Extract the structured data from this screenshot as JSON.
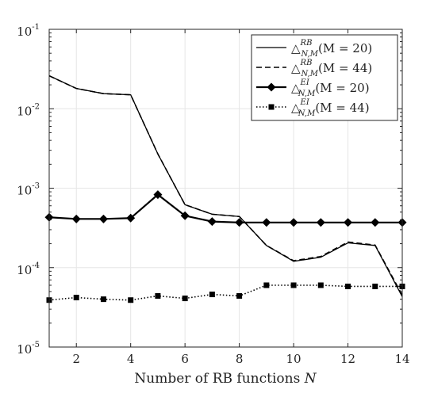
{
  "chart_data": {
    "type": "line",
    "title": "",
    "xlabel": "Number of RB functions N",
    "xlabel_main": "Number of RB functions ",
    "xlabel_var": "N",
    "ylabel": "",
    "yscale": "log",
    "xlim": [
      1,
      14
    ],
    "ylim": [
      1e-05,
      0.1
    ],
    "xticks": [
      2,
      4,
      6,
      8,
      10,
      12,
      14
    ],
    "yticks": [
      {
        "value": 1e-05,
        "base": "10",
        "exp": "-5"
      },
      {
        "value": 0.0001,
        "base": "10",
        "exp": "-4"
      },
      {
        "value": 0.001,
        "base": "10",
        "exp": "-3"
      },
      {
        "value": 0.01,
        "base": "10",
        "exp": "-2"
      },
      {
        "value": 0.1,
        "base": "10",
        "exp": "-1"
      }
    ],
    "grid": true,
    "legend_position": "top-right",
    "x": [
      1,
      2,
      3,
      4,
      5,
      6,
      7,
      8,
      9,
      10,
      11,
      12,
      13,
      14
    ],
    "series": [
      {
        "name": "△^{RB}_{N,M}(M = 20)",
        "sup": "RB",
        "sub": "N,M",
        "rest": "(M = 20)",
        "style": "solid",
        "marker": "none",
        "values": [
          0.026,
          0.018,
          0.0155,
          0.015,
          0.0027,
          0.00062,
          0.00047,
          0.00044,
          0.00019,
          0.00012,
          0.000135,
          0.000205,
          0.00019,
          4.3e-05
        ]
      },
      {
        "name": "△^{RB}_{N,M}(M = 44)",
        "sup": "RB",
        "sub": "N,M",
        "rest": "(M = 44)",
        "style": "dashed",
        "marker": "none",
        "values": [
          0.026,
          0.018,
          0.0155,
          0.015,
          0.0027,
          0.00062,
          0.00047,
          0.00044,
          0.00019,
          0.000122,
          0.000138,
          0.00021,
          0.000192,
          4.5e-05
        ]
      },
      {
        "name": "△^{EI}_{N,M}(M = 20)",
        "sup": "EI",
        "sub": "N,M",
        "rest": "(M = 20)",
        "style": "solid-thick",
        "marker": "diamond",
        "values": [
          0.00043,
          0.00041,
          0.00041,
          0.00042,
          0.00083,
          0.00045,
          0.00038,
          0.00037,
          0.00037,
          0.00037,
          0.00037,
          0.00037,
          0.00037,
          0.00037
        ]
      },
      {
        "name": "△^{EI}_{N,M}(M = 44)",
        "sup": "EI",
        "sub": "N,M",
        "rest": "(M = 44)",
        "style": "dotted",
        "marker": "square",
        "values": [
          3.9e-05,
          4.2e-05,
          4e-05,
          3.9e-05,
          4.4e-05,
          4.1e-05,
          4.6e-05,
          4.4e-05,
          6e-05,
          6e-05,
          6e-05,
          5.8e-05,
          5.8e-05,
          5.8e-05
        ]
      }
    ]
  }
}
